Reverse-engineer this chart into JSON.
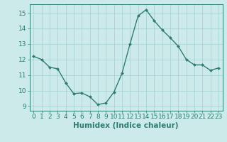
{
  "x": [
    0,
    1,
    2,
    3,
    4,
    5,
    6,
    7,
    8,
    9,
    10,
    11,
    12,
    13,
    14,
    15,
    16,
    17,
    18,
    19,
    20,
    21,
    22,
    23
  ],
  "y": [
    12.2,
    12.0,
    11.5,
    11.4,
    10.5,
    9.8,
    9.85,
    9.6,
    9.1,
    9.2,
    9.9,
    11.1,
    13.0,
    14.8,
    15.2,
    14.5,
    13.9,
    13.4,
    12.85,
    12.0,
    11.65,
    11.65,
    11.3,
    11.45
  ],
  "line_color": "#2e7d6e",
  "marker": "D",
  "marker_size": 2.0,
  "bg_color": "#cceaea",
  "grid_color": "#aad4d4",
  "xlabel": "Humidex (Indice chaleur)",
  "xlim": [
    -0.5,
    23.5
  ],
  "ylim": [
    8.7,
    15.55
  ],
  "yticks": [
    9,
    10,
    11,
    12,
    13,
    14,
    15
  ],
  "xticks": [
    0,
    1,
    2,
    3,
    4,
    5,
    6,
    7,
    8,
    9,
    10,
    11,
    12,
    13,
    14,
    15,
    16,
    17,
    18,
    19,
    20,
    21,
    22,
    23
  ],
  "tick_fontsize": 6.5,
  "xlabel_fontsize": 7.5,
  "line_width": 1.0
}
